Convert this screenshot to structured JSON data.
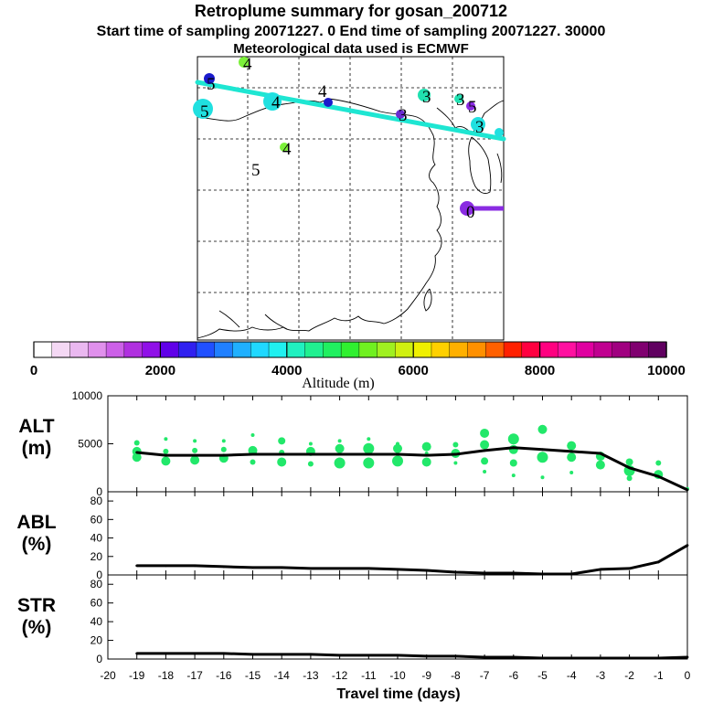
{
  "header": {
    "title": "Retroplume summary for gosan_200712",
    "line2": "Start time of sampling 20071227.    0     End time of sampling 20071227. 30000",
    "line3": "Meteorological data used is ECMWF"
  },
  "colors": {
    "trajectory": "#1ee6d2",
    "release": "#8a2be2",
    "dots": "#22e86a",
    "line": "#000000"
  },
  "colorbar": {
    "label": "Altitude  (m)",
    "ticks": [
      "0",
      "2000",
      "4000",
      "6000",
      "8000",
      "10000"
    ],
    "colors": [
      "#ffffff",
      "#f4d8f4",
      "#eab8f0",
      "#e090ec",
      "#cc60e8",
      "#b030e0",
      "#9010e8",
      "#6000e8",
      "#3020f0",
      "#2050ff",
      "#2080ff",
      "#20b0ff",
      "#20d8ff",
      "#20f0f0",
      "#20f0c0",
      "#20f090",
      "#20f060",
      "#30f030",
      "#70f020",
      "#a0f020",
      "#d0f010",
      "#f0f000",
      "#ffd000",
      "#ffb000",
      "#ff9000",
      "#ff6000",
      "#ff2000",
      "#ff0040",
      "#ff0080",
      "#ff10a0",
      "#e000a0",
      "#c00090",
      "#a00080",
      "#800070",
      "#600060"
    ]
  },
  "map_labels": [
    {
      "text": "4",
      "color": "#7cf03a"
    },
    {
      "text": "5",
      "color": "#1a1acc"
    },
    {
      "text": "4",
      "color": "#20e0e0"
    },
    {
      "text": "5",
      "color": "#20e0e0"
    },
    {
      "text": "4",
      "color": "#1a1acc"
    },
    {
      "text": "3",
      "color": "#20e0b0"
    },
    {
      "text": "3",
      "color": "#6a2bd2"
    },
    {
      "text": "3",
      "color": "#20e0b0"
    },
    {
      "text": "5",
      "color": "#8a2be2"
    },
    {
      "text": "3",
      "color": "#20e0e0"
    },
    {
      "text": "4",
      "color": "#7cf03a"
    },
    {
      "text": "5",
      "color": "#ffffff"
    },
    {
      "text": "0",
      "color": "#ffffff"
    }
  ],
  "chart_data": [
    {
      "type": "scatter",
      "panel": "ALT",
      "ylabel": "ALT\n(m)",
      "ylabel_lines": [
        "ALT",
        "(m)"
      ],
      "ylim": [
        0,
        10000
      ],
      "yticks": [
        "0",
        "5000",
        "10000"
      ],
      "x": [
        -19,
        -18,
        -17,
        -16,
        -15,
        -14,
        -13,
        -12,
        -11,
        -10,
        -9,
        -8,
        -7,
        -6,
        -5,
        -4,
        -3,
        -2,
        -1,
        0
      ],
      "series": [
        {
          "name": "mean altitude",
          "values": [
            4100,
            3800,
            3800,
            3800,
            3900,
            3900,
            3900,
            3900,
            3900,
            3900,
            3800,
            3900,
            4300,
            4600,
            4400,
            4200,
            4000,
            2500,
            1600,
            200
          ]
        }
      ],
      "dots": [
        {
          "x": -19,
          "y": 4200,
          "r": 5
        },
        {
          "x": -19,
          "y": 3600,
          "r": 5
        },
        {
          "x": -19,
          "y": 5100,
          "r": 3
        },
        {
          "x": -18,
          "y": 3200,
          "r": 5
        },
        {
          "x": -18,
          "y": 4200,
          "r": 3
        },
        {
          "x": -18,
          "y": 5500,
          "r": 2
        },
        {
          "x": -17,
          "y": 3300,
          "r": 5
        },
        {
          "x": -17,
          "y": 4300,
          "r": 3
        },
        {
          "x": -17,
          "y": 5300,
          "r": 2
        },
        {
          "x": -16,
          "y": 3500,
          "r": 5
        },
        {
          "x": -16,
          "y": 4400,
          "r": 3
        },
        {
          "x": -16,
          "y": 5300,
          "r": 2
        },
        {
          "x": -15,
          "y": 4300,
          "r": 5
        },
        {
          "x": -15,
          "y": 3100,
          "r": 3
        },
        {
          "x": -15,
          "y": 5900,
          "r": 2
        },
        {
          "x": -14,
          "y": 5300,
          "r": 4
        },
        {
          "x": -14,
          "y": 3100,
          "r": 5
        },
        {
          "x": -14,
          "y": 4100,
          "r": 3
        },
        {
          "x": -13,
          "y": 4200,
          "r": 5
        },
        {
          "x": -13,
          "y": 2900,
          "r": 3
        },
        {
          "x": -13,
          "y": 5000,
          "r": 2
        },
        {
          "x": -12,
          "y": 4500,
          "r": 5
        },
        {
          "x": -12,
          "y": 3000,
          "r": 6
        },
        {
          "x": -12,
          "y": 5300,
          "r": 2
        },
        {
          "x": -11,
          "y": 4500,
          "r": 6
        },
        {
          "x": -11,
          "y": 3000,
          "r": 6
        },
        {
          "x": -11,
          "y": 5500,
          "r": 2
        },
        {
          "x": -10,
          "y": 4500,
          "r": 5
        },
        {
          "x": -10,
          "y": 3200,
          "r": 6
        },
        {
          "x": -10,
          "y": 5000,
          "r": 2
        },
        {
          "x": -9,
          "y": 4700,
          "r": 5
        },
        {
          "x": -9,
          "y": 3100,
          "r": 5
        },
        {
          "x": -9,
          "y": 4000,
          "r": 2
        },
        {
          "x": -8,
          "y": 4000,
          "r": 5
        },
        {
          "x": -8,
          "y": 4900,
          "r": 3
        },
        {
          "x": -8,
          "y": 3000,
          "r": 2
        },
        {
          "x": -7,
          "y": 6100,
          "r": 5
        },
        {
          "x": -7,
          "y": 4900,
          "r": 5
        },
        {
          "x": -7,
          "y": 3200,
          "r": 4
        },
        {
          "x": -7,
          "y": 2100,
          "r": 2
        },
        {
          "x": -6,
          "y": 5500,
          "r": 6
        },
        {
          "x": -6,
          "y": 4400,
          "r": 5
        },
        {
          "x": -6,
          "y": 3000,
          "r": 4
        },
        {
          "x": -6,
          "y": 1700,
          "r": 2
        },
        {
          "x": -5,
          "y": 6500,
          "r": 5
        },
        {
          "x": -5,
          "y": 3600,
          "r": 6
        },
        {
          "x": -5,
          "y": 1500,
          "r": 2
        },
        {
          "x": -4,
          "y": 4800,
          "r": 5
        },
        {
          "x": -4,
          "y": 3600,
          "r": 5
        },
        {
          "x": -4,
          "y": 2000,
          "r": 2
        },
        {
          "x": -3,
          "y": 3700,
          "r": 5
        },
        {
          "x": -3,
          "y": 2800,
          "r": 5
        },
        {
          "x": -2,
          "y": 3100,
          "r": 4
        },
        {
          "x": -2,
          "y": 2200,
          "r": 6
        },
        {
          "x": -2,
          "y": 1400,
          "r": 3
        },
        {
          "x": -1,
          "y": 3000,
          "r": 3
        },
        {
          "x": -1,
          "y": 1800,
          "r": 5
        },
        {
          "x": 0,
          "y": 300,
          "r": 2
        }
      ]
    },
    {
      "type": "line",
      "panel": "ABL",
      "ylabel": "ABL\n(%)",
      "ylabel_lines": [
        "ABL",
        "(%)"
      ],
      "ylim": [
        0,
        90
      ],
      "yticks": [
        "0",
        "20",
        "40",
        "60",
        "80"
      ],
      "x": [
        -19,
        -18,
        -17,
        -16,
        -15,
        -14,
        -13,
        -12,
        -11,
        -10,
        -9,
        -8,
        -7,
        -6,
        -5,
        -4,
        -3,
        -2,
        -1,
        0
      ],
      "series": [
        {
          "name": "ABL fraction",
          "values": [
            10,
            10,
            10,
            9,
            8,
            8,
            7,
            7,
            7,
            6,
            5,
            3,
            2,
            2,
            1,
            1,
            6,
            7,
            14,
            32
          ]
        }
      ]
    },
    {
      "type": "line",
      "panel": "STR",
      "ylabel": "STR\n(%)",
      "ylabel_lines": [
        "STR",
        "(%)"
      ],
      "ylim": [
        0,
        90
      ],
      "yticks": [
        "0",
        "20",
        "40",
        "60",
        "80"
      ],
      "x": [
        -19,
        -18,
        -17,
        -16,
        -15,
        -14,
        -13,
        -12,
        -11,
        -10,
        -9,
        -8,
        -7,
        -6,
        -5,
        -4,
        -3,
        -2,
        -1,
        0
      ],
      "series": [
        {
          "name": "STR fraction",
          "values": [
            6,
            6,
            6,
            6,
            5,
            5,
            5,
            4,
            4,
            4,
            3,
            3,
            2,
            2,
            1,
            1,
            1,
            1,
            1,
            2
          ]
        }
      ]
    }
  ],
  "xaxis": {
    "label": "Travel time (days)",
    "ticks": [
      "-20",
      "-19",
      "-18",
      "-17",
      "-16",
      "-15",
      "-14",
      "-13",
      "-12",
      "-11",
      "-10",
      "-9",
      "-8",
      "-7",
      "-6",
      "-5",
      "-4",
      "-3",
      "-2",
      "-1",
      "0"
    ]
  }
}
